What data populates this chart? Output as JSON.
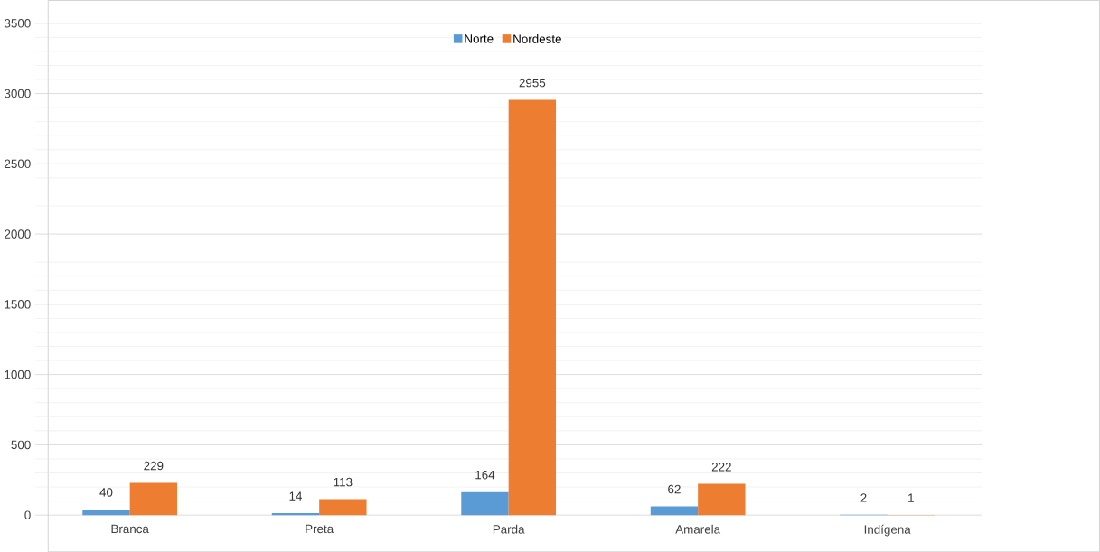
{
  "chart_data": {
    "type": "bar",
    "categories": [
      "Branca",
      "Preta",
      "Parda",
      "Amarela",
      "Indígena"
    ],
    "series": [
      {
        "name": "Norte",
        "color": "#5b9bd5",
        "values": [
          40,
          14,
          164,
          62,
          2
        ]
      },
      {
        "name": "Nordeste",
        "color": "#ed7d31",
        "values": [
          229,
          113,
          2955,
          222,
          1
        ]
      }
    ],
    "ylim": [
      0,
      3500
    ],
    "yticks": [
      0,
      500,
      1000,
      1500,
      2000,
      2500,
      3000,
      3500
    ],
    "grid": "y",
    "legend": "top",
    "data_labels": true
  }
}
